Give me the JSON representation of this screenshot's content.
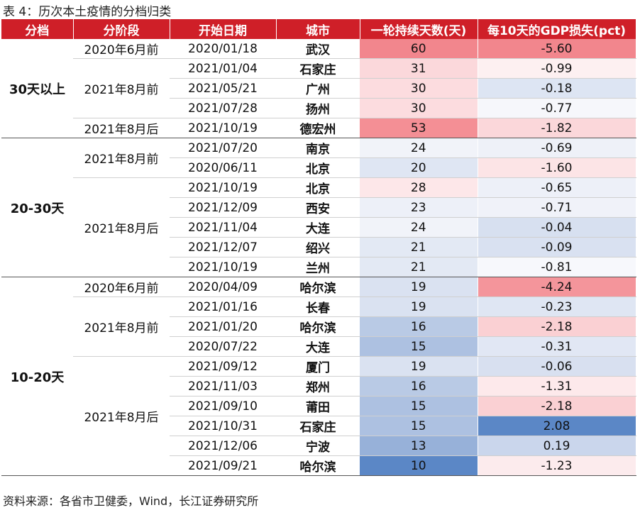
{
  "caption": "表 4：历次本土疫情的分档归类",
  "headers": [
    "分档",
    "分阶段",
    "开始日期",
    "城市",
    "一轮持续天数(天)",
    "每10天的GDP损失(pct)"
  ],
  "groups": [
    {
      "label": "30天以上",
      "stages": [
        {
          "label": "2020年6月前",
          "rows": [
            {
              "date": "2020/01/18",
              "city": "武汉",
              "days": "60",
              "gdp": "-5.60",
              "days_color": "#f2868d",
              "gdp_color": "#f2868d"
            }
          ]
        },
        {
          "label": "2021年8月前",
          "rows": [
            {
              "date": "2021/01/04",
              "city": "石家庄",
              "days": "31",
              "days_color": "#fbd8db",
              "gdp": "-0.99",
              "gdp_color": "#fdf0f1"
            },
            {
              "date": "2021/05/21",
              "city": "广州",
              "days": "30",
              "days_color": "#fcdcdf",
              "gdp": "-0.18",
              "gdp_color": "#dde5f3"
            },
            {
              "date": "2021/07/28",
              "city": "扬州",
              "days": "30",
              "days_color": "#fcdcdf",
              "gdp": "-0.77",
              "gdp_color": "#f6f7fb"
            }
          ]
        },
        {
          "label": "2021年8月后",
          "rows": [
            {
              "date": "2021/10/19",
              "city": "德宏州",
              "days": "53",
              "days_color": "#f48f95",
              "gdp": "-1.82",
              "gdp_color": "#fbd7da"
            }
          ]
        }
      ]
    },
    {
      "label": "20-30天",
      "stages": [
        {
          "label": "2021年8月前",
          "rows": [
            {
              "date": "2021/07/20",
              "city": "南京",
              "days": "24",
              "days_color": "#f1f3f9",
              "gdp": "-0.69",
              "gdp_color": "#eef1f8"
            },
            {
              "date": "2020/06/11",
              "city": "北京",
              "days": "20",
              "days_color": "#dfe6f3",
              "gdp": "-1.60",
              "gdp_color": "#fce4e6"
            }
          ]
        },
        {
          "label": "2021年8月后",
          "rows": [
            {
              "date": "2021/10/19",
              "city": "北京",
              "days": "28",
              "days_color": "#fde7e9",
              "gdp": "-0.65",
              "gdp_color": "#edf0f8"
            },
            {
              "date": "2021/12/09",
              "city": "西安",
              "days": "23",
              "days_color": "#edf0f8",
              "gdp": "-0.71",
              "gdp_color": "#f0f2f9"
            },
            {
              "date": "2021/11/04",
              "city": "大连",
              "days": "24",
              "days_color": "#f1f3f9",
              "gdp": "-0.04",
              "gdp_color": "#d7e0f0"
            },
            {
              "date": "2021/12/07",
              "city": "绍兴",
              "days": "21",
              "days_color": "#e3e9f4",
              "gdp": "-0.09",
              "gdp_color": "#d9e1f1"
            },
            {
              "date": "2021/10/19",
              "city": "兰州",
              "days": "21",
              "days_color": "#e3e9f4",
              "gdp": "-0.81",
              "gdp_color": "#f7f8fc"
            }
          ]
        }
      ]
    },
    {
      "label": "10-20天",
      "stages": [
        {
          "label": "2020年6月前",
          "rows": [
            {
              "date": "2020/04/09",
              "city": "哈尔滨",
              "days": "19",
              "days_color": "#dae2f1",
              "gdp": "-4.24",
              "gdp_color": "#f4959b"
            }
          ]
        },
        {
          "label": "2021年8月前",
          "rows": [
            {
              "date": "2021/01/16",
              "city": "长春",
              "days": "19",
              "days_color": "#dae2f1",
              "gdp": "-0.23",
              "gdp_color": "#dfe6f3"
            },
            {
              "date": "2021/01/20",
              "city": "哈尔滨",
              "days": "16",
              "days_color": "#b9cae5",
              "gdp": "-2.18",
              "gdp_color": "#fad0d3"
            },
            {
              "date": "2020/07/22",
              "city": "大连",
              "days": "15",
              "days_color": "#adc1e1",
              "gdp": "-0.31",
              "gdp_color": "#e1e7f4"
            }
          ]
        },
        {
          "label": "2021年8月后",
          "rows": [
            {
              "date": "2021/09/12",
              "city": "厦门",
              "days": "19",
              "days_color": "#dae2f1",
              "gdp": "-0.06",
              "gdp_color": "#d8e0f0"
            },
            {
              "date": "2021/11/03",
              "city": "郑州",
              "days": "16",
              "days_color": "#b9cae5",
              "gdp": "-1.31",
              "gdp_color": "#fde9eb"
            },
            {
              "date": "2021/09/10",
              "city": "莆田",
              "days": "15",
              "days_color": "#adc1e1",
              "gdp": "-2.18",
              "gdp_color": "#fad0d3"
            },
            {
              "date": "2021/10/31",
              "city": "石家庄",
              "days": "15",
              "days_color": "#adc1e1",
              "gdp": "2.08",
              "gdp_color": "#5b87c6"
            },
            {
              "date": "2021/12/06",
              "city": "宁波",
              "days": "13",
              "days_color": "#97b1d9",
              "gdp": "0.19",
              "gdp_color": "#cad6ec"
            },
            {
              "date": "2021/09/21",
              "city": "哈尔滨",
              "days": "10",
              "days_color": "#5b87c6",
              "gdp": "-1.23",
              "gdp_color": "#fcebed"
            }
          ]
        }
      ]
    }
  ],
  "footer": "资料来源：各省市卫健委，Wind，长江证券研究所"
}
